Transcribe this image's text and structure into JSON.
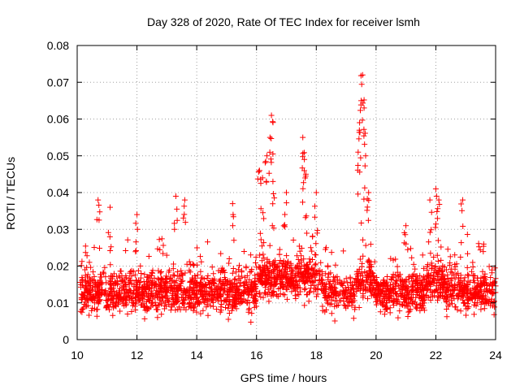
{
  "chart_data": {
    "type": "scatter",
    "title": "Day 328 of 2020, Rate Of TEC Index for receiver lsmh",
    "xlabel": "GPS time / hours",
    "ylabel": "ROTI / TECUs",
    "xlim": [
      10,
      24
    ],
    "ylim": [
      0,
      0.08
    ],
    "x_ticks": [
      "10",
      "12",
      "14",
      "16",
      "18",
      "20",
      "22",
      "24"
    ],
    "x_tick_values": [
      10,
      12,
      14,
      16,
      18,
      20,
      22,
      24
    ],
    "y_ticks": [
      "0",
      "0.01",
      "0.02",
      "0.03",
      "0.04",
      "0.05",
      "0.06",
      "0.07",
      "0.08"
    ],
    "y_tick_values": [
      0,
      0.01,
      0.02,
      0.03,
      0.04,
      0.05,
      0.06,
      0.07,
      0.08
    ],
    "grid": true,
    "marker": "+",
    "series": [
      {
        "name": "ROTI",
        "color": "#ff0000",
        "baseline_band": {
          "x_range": [
            10.1,
            24.0
          ],
          "typical_y": [
            0.005,
            0.025
          ],
          "median_y": 0.013
        },
        "notable_points": [
          {
            "x": 10.7,
            "y": 0.038
          },
          {
            "x": 11.1,
            "y": 0.036
          },
          {
            "x": 12.0,
            "y": 0.034
          },
          {
            "x": 13.3,
            "y": 0.039
          },
          {
            "x": 13.6,
            "y": 0.038
          },
          {
            "x": 15.2,
            "y": 0.037
          },
          {
            "x": 16.1,
            "y": 0.046
          },
          {
            "x": 16.2,
            "y": 0.044
          },
          {
            "x": 16.35,
            "y": 0.05
          },
          {
            "x": 16.45,
            "y": 0.055
          },
          {
            "x": 16.5,
            "y": 0.061
          },
          {
            "x": 16.55,
            "y": 0.043
          },
          {
            "x": 17.0,
            "y": 0.04
          },
          {
            "x": 17.55,
            "y": 0.055
          },
          {
            "x": 17.6,
            "y": 0.049
          },
          {
            "x": 17.65,
            "y": 0.045
          },
          {
            "x": 18.0,
            "y": 0.04
          },
          {
            "x": 19.4,
            "y": 0.051
          },
          {
            "x": 19.45,
            "y": 0.059
          },
          {
            "x": 19.5,
            "y": 0.065
          },
          {
            "x": 19.55,
            "y": 0.072
          },
          {
            "x": 19.6,
            "y": 0.063
          },
          {
            "x": 19.65,
            "y": 0.05
          },
          {
            "x": 19.75,
            "y": 0.04
          },
          {
            "x": 21.0,
            "y": 0.031
          },
          {
            "x": 21.8,
            "y": 0.038
          },
          {
            "x": 22.0,
            "y": 0.041
          },
          {
            "x": 22.1,
            "y": 0.038
          },
          {
            "x": 22.9,
            "y": 0.038
          },
          {
            "x": 23.6,
            "y": 0.026
          }
        ]
      }
    ]
  }
}
